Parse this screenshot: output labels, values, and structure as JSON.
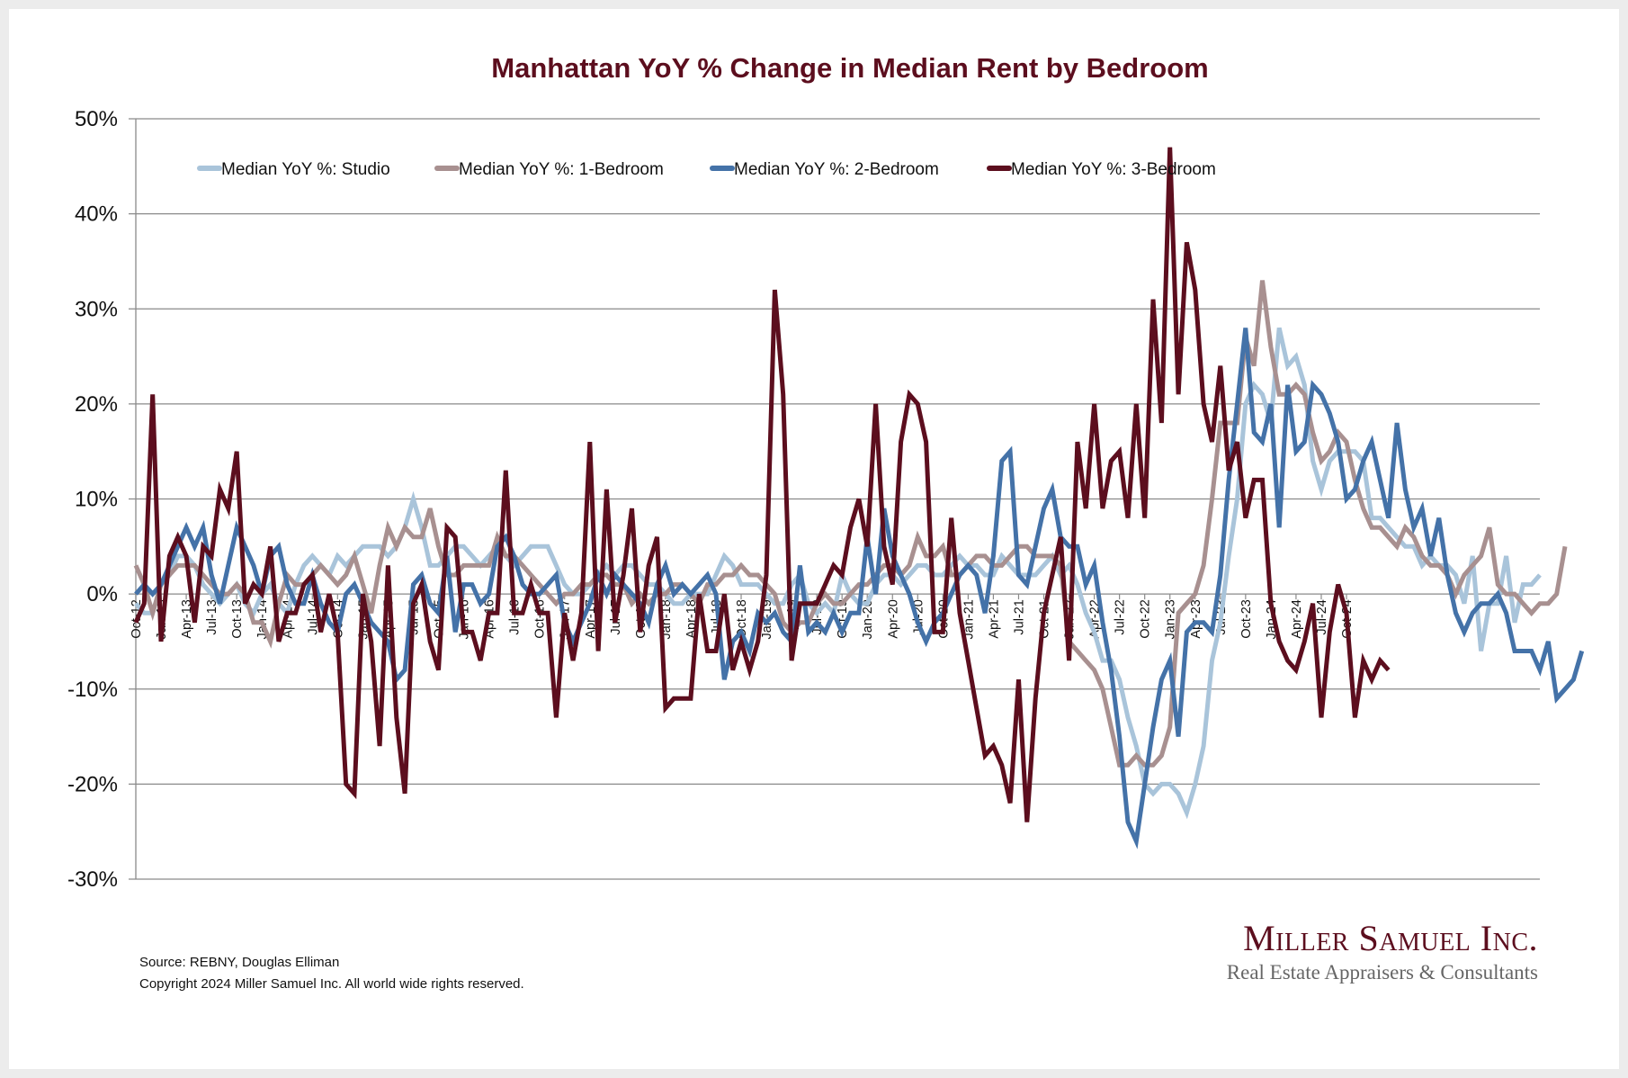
{
  "chart_data": {
    "type": "line",
    "title": "Manhattan YoY % Change in Median Rent by Bedroom",
    "xlabel": "",
    "ylabel": "",
    "ylim": [
      -30,
      50
    ],
    "yticks": [
      "50%",
      "40%",
      "30%",
      "20%",
      "10%",
      "0%",
      "-10%",
      "-20%",
      "-30%"
    ],
    "ytick_values": [
      50,
      40,
      30,
      20,
      10,
      0,
      -10,
      -20,
      -30
    ],
    "grid": true,
    "legend_position": "top",
    "x_start": "Oct-12",
    "x_end": "Oct-24",
    "x_tick_labels": [
      "Oct-12",
      "Jan-13",
      "Apr-13",
      "Jul-13",
      "Oct-13",
      "Jan-14",
      "Apr-14",
      "Jul-14",
      "Oct-14",
      "Jan-15",
      "Apr-15",
      "Jul-15",
      "Oct-15",
      "Jan-16",
      "Apr-16",
      "Jul-16",
      "Oct-16",
      "Jan-17",
      "Apr-17",
      "Jul-17",
      "Oct-17",
      "Jan-18",
      "Apr-18",
      "Jul-18",
      "Oct-18",
      "Jan-19",
      "Apr-19",
      "Jul-19",
      "Oct-19",
      "Jan-20",
      "Apr-20",
      "Jul-20",
      "Oct-20",
      "Jan-21",
      "Apr-21",
      "Jul-21",
      "Oct-21",
      "Jan-22",
      "Apr-22",
      "Jul-22",
      "Oct-22",
      "Jan-23",
      "Apr-23",
      "Jul-23",
      "Oct-23",
      "Jan-24",
      "Apr-24",
      "Jul-24",
      "Oct-24"
    ],
    "series": [
      {
        "name": "Median YoY %: Studio",
        "color": "#a9c4da",
        "values": [
          -1,
          -2,
          -2,
          1,
          2,
          4,
          4,
          3,
          1,
          0,
          -1,
          0,
          1,
          -1,
          -2,
          0,
          1,
          -1,
          -2,
          1,
          3,
          4,
          3,
          2,
          4,
          3,
          4,
          5,
          5,
          5,
          4,
          5,
          7,
          10,
          7,
          3,
          3,
          4,
          5,
          5,
          4,
          3,
          4,
          5,
          4,
          3,
          4,
          5,
          5,
          5,
          3,
          1,
          0,
          0,
          1,
          2,
          3,
          2,
          3,
          3,
          2,
          1,
          1,
          0,
          -1,
          -1,
          0,
          0,
          0,
          2,
          4,
          3,
          1,
          1,
          1,
          0,
          -1,
          -1,
          1,
          2,
          -1,
          -2,
          -1,
          -2,
          2,
          0,
          -1,
          -1,
          1,
          2,
          2,
          1,
          2,
          3,
          3,
          2,
          2,
          3,
          4,
          3,
          3,
          2,
          2,
          4,
          3,
          2,
          2,
          2,
          3,
          4,
          2,
          3,
          1,
          -2,
          -4,
          -7,
          -7,
          -9,
          -13,
          -16,
          -20,
          -21,
          -20,
          -20,
          -21,
          -23,
          -20,
          -16,
          -7,
          -3,
          4,
          10,
          20,
          22,
          21,
          18,
          28,
          24,
          25,
          22,
          14,
          11,
          14,
          15,
          15,
          15,
          14,
          8,
          8,
          7,
          6,
          5,
          5,
          3,
          4,
          3,
          3,
          2,
          -1,
          4,
          -6,
          -1,
          -1,
          4,
          -3,
          1,
          1,
          2
        ],
        "note": "approximate monthly readings"
      },
      {
        "name": "Median YoY %: 1-Bedroom",
        "color": "#a89090",
        "values": [
          3,
          1,
          -2,
          1,
          2,
          3,
          3,
          3,
          2,
          1,
          0,
          0,
          1,
          0,
          -3,
          -3,
          -5,
          -1,
          2,
          1,
          1,
          2,
          3,
          2,
          1,
          2,
          4,
          1,
          -2,
          3,
          7,
          5,
          7,
          6,
          6,
          9,
          5,
          2,
          2,
          3,
          3,
          3,
          3,
          6,
          4,
          4,
          3,
          2,
          1,
          0,
          -1,
          0,
          0,
          1,
          1,
          2,
          2,
          1,
          1,
          -1,
          0,
          -1,
          0,
          0,
          1,
          1,
          0,
          -1,
          1,
          1,
          2,
          2,
          3,
          2,
          2,
          1,
          0,
          -3,
          -4,
          -3,
          -3,
          -1,
          0,
          -1,
          -1,
          0,
          1,
          1,
          2,
          3,
          3,
          2,
          3,
          6,
          4,
          4,
          5,
          2,
          2,
          3,
          4,
          4,
          3,
          3,
          4,
          5,
          5,
          4,
          4,
          4,
          3,
          -5,
          -6,
          -7,
          -8,
          -10,
          -14,
          -18,
          -18,
          -17,
          -18,
          -18,
          -17,
          -14,
          -2,
          -1,
          0,
          3,
          10,
          18,
          18,
          18,
          27,
          24,
          33,
          26,
          21,
          21,
          22,
          21,
          17,
          14,
          15,
          17,
          16,
          12,
          9,
          7,
          7,
          6,
          5,
          7,
          6,
          4,
          3,
          3,
          2,
          0,
          2,
          3,
          4,
          7,
          1,
          0,
          0,
          -1,
          -2,
          -1,
          -1,
          0,
          5
        ],
        "note": "approximate monthly readings"
      },
      {
        "name": "Median YoY %: 2-Bedroom",
        "color": "#4472a8",
        "values": [
          0,
          1,
          0,
          1,
          3,
          5,
          7,
          5,
          7,
          2,
          -1,
          3,
          7,
          5,
          3,
          0,
          4,
          5,
          1,
          -1,
          -1,
          2,
          -1,
          -3,
          -4,
          0,
          1,
          -1,
          -3,
          -4,
          -5,
          -9,
          -8,
          1,
          2,
          -1,
          -2,
          4,
          -4,
          1,
          1,
          -1,
          0,
          5,
          6,
          4,
          1,
          0,
          0,
          1,
          2,
          -3,
          -5,
          -3,
          -1,
          2,
          0,
          2,
          1,
          0,
          -1,
          -3,
          1,
          3,
          0,
          1,
          0,
          1,
          2,
          0,
          -9,
          -5,
          -4,
          -6,
          -2,
          -3,
          -2,
          -4,
          -5,
          3,
          -4,
          -3,
          -4,
          -2,
          -4,
          -2,
          -2,
          6,
          0,
          9,
          4,
          2,
          0,
          -3,
          -5,
          -3,
          -2,
          0,
          2,
          3,
          2,
          -2,
          4,
          14,
          15,
          2,
          1,
          5,
          9,
          11,
          6,
          5,
          5,
          1,
          3,
          -3,
          -8,
          -15,
          -24,
          -26,
          -20,
          -14,
          -9,
          -7,
          -15,
          -4,
          -3,
          -3,
          -4,
          2,
          12,
          20,
          28,
          17,
          16,
          20,
          7,
          22,
          15,
          16,
          22,
          21,
          19,
          16,
          10,
          11,
          14,
          16,
          12,
          8,
          18,
          11,
          7,
          9,
          4,
          8,
          2,
          -2,
          -4,
          -2,
          -1,
          -1,
          0,
          -2,
          -6,
          -6,
          -6,
          -8,
          -5,
          -11,
          -10,
          -9,
          -6
        ],
        "note": "approximate monthly readings"
      },
      {
        "name": "Median YoY %: 3-Bedroom",
        "color": "#5c0e1e",
        "values": [
          -3,
          -1,
          21,
          -5,
          4,
          6,
          4,
          -3,
          5,
          4,
          11,
          9,
          15,
          -1,
          1,
          0,
          5,
          -5,
          -2,
          -2,
          1,
          2,
          -4,
          0,
          -4,
          -20,
          -21,
          0,
          -5,
          -16,
          3,
          -13,
          -21,
          -1,
          1,
          -5,
          -8,
          7,
          6,
          -4,
          -4,
          -7,
          -2,
          -2,
          13,
          -2,
          -2,
          1,
          -2,
          -2,
          -13,
          -2,
          -7,
          -2,
          16,
          -6,
          11,
          -3,
          2,
          9,
          -4,
          3,
          6,
          -12,
          -11,
          -11,
          -11,
          0,
          -6,
          -6,
          0,
          -8,
          -5,
          -8,
          -5,
          2,
          32,
          21,
          -7,
          -1,
          -1,
          -1,
          1,
          3,
          2,
          7,
          10,
          5,
          20,
          5,
          1,
          16,
          21,
          20,
          16,
          -4,
          -4,
          8,
          -2,
          -7,
          -12,
          -17,
          -16,
          -18,
          -22,
          -9,
          -24,
          -11,
          -2,
          2,
          6,
          -7,
          16,
          9,
          20,
          9,
          14,
          15,
          8,
          20,
          8,
          31,
          18,
          47,
          21,
          37,
          32,
          20,
          16,
          24,
          13,
          16,
          8,
          12,
          12,
          -1,
          -5,
          -7,
          -8,
          -5,
          -1,
          -13,
          -4,
          1,
          -2,
          -13,
          -7,
          -9,
          -7,
          -8
        ],
        "note": "approximate monthly readings"
      }
    ]
  },
  "footer": {
    "source": "Source: REBNY, Douglas Elliman",
    "copyright": "Copyright 2024 Miller Samuel Inc.  All world wide rights reserved."
  },
  "logo": {
    "name": "Miller Samuel Inc.",
    "tagline": "Real Estate Appraisers & Consultants"
  }
}
